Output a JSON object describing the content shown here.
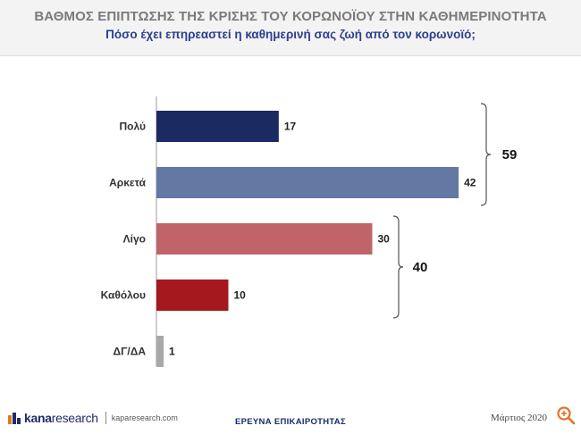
{
  "header": {
    "title": "ΒΑΘΜΟΣ ΕΠΙΠΤΩΣΗΣ ΤΗΣ ΚΡΙΣΗΣ ΤΟΥ ΚΟΡΩΝΟΪΟΥ ΣΤΗΝ ΚΑΘΗΜΕΡΙΝΟΤΗΤΑ",
    "subtitle": "Πόσο έχει επηρεαστεί η καθημερινή σας ζωή από τον κορωνοϊό;"
  },
  "chart_data": {
    "type": "bar",
    "orientation": "horizontal",
    "title": "ΒΑΘΜΟΣ ΕΠΙΠΤΩΣΗΣ ΤΗΣ ΚΡΙΣΗΣ ΤΟΥ ΚΟΡΩΝΟΪΟΥ ΣΤΗΝ ΚΑΘΗΜΕΡΙΝΟΤΗΤΑ",
    "subtitle": "Πόσο έχει επηρεαστεί η καθημερινή σας ζωή από τον κορωνοϊό;",
    "categories": [
      "Πολύ",
      "Αρκετά",
      "Λίγο",
      "Καθόλου",
      "ΔΓ/ΔΑ"
    ],
    "values": [
      17,
      42,
      30,
      10,
      1
    ],
    "colors": [
      "#1b2a63",
      "#6378a3",
      "#c0646a",
      "#a5181e",
      "#a8a8a8"
    ],
    "xlim": [
      0,
      45
    ],
    "grid": false,
    "groups": [
      {
        "label": "59",
        "from": 0,
        "to": 1
      },
      {
        "label": "40",
        "from": 2,
        "to": 3
      }
    ]
  },
  "footer": {
    "brand_a": "kana",
    "brand_b": "research",
    "url": "kaparesearch.com",
    "center": "ΕΡΕΥΝΑ ΕΠΙΚΑΙΡΟΤΗΤΑΣ",
    "date": "Μάρτιος 2020"
  }
}
